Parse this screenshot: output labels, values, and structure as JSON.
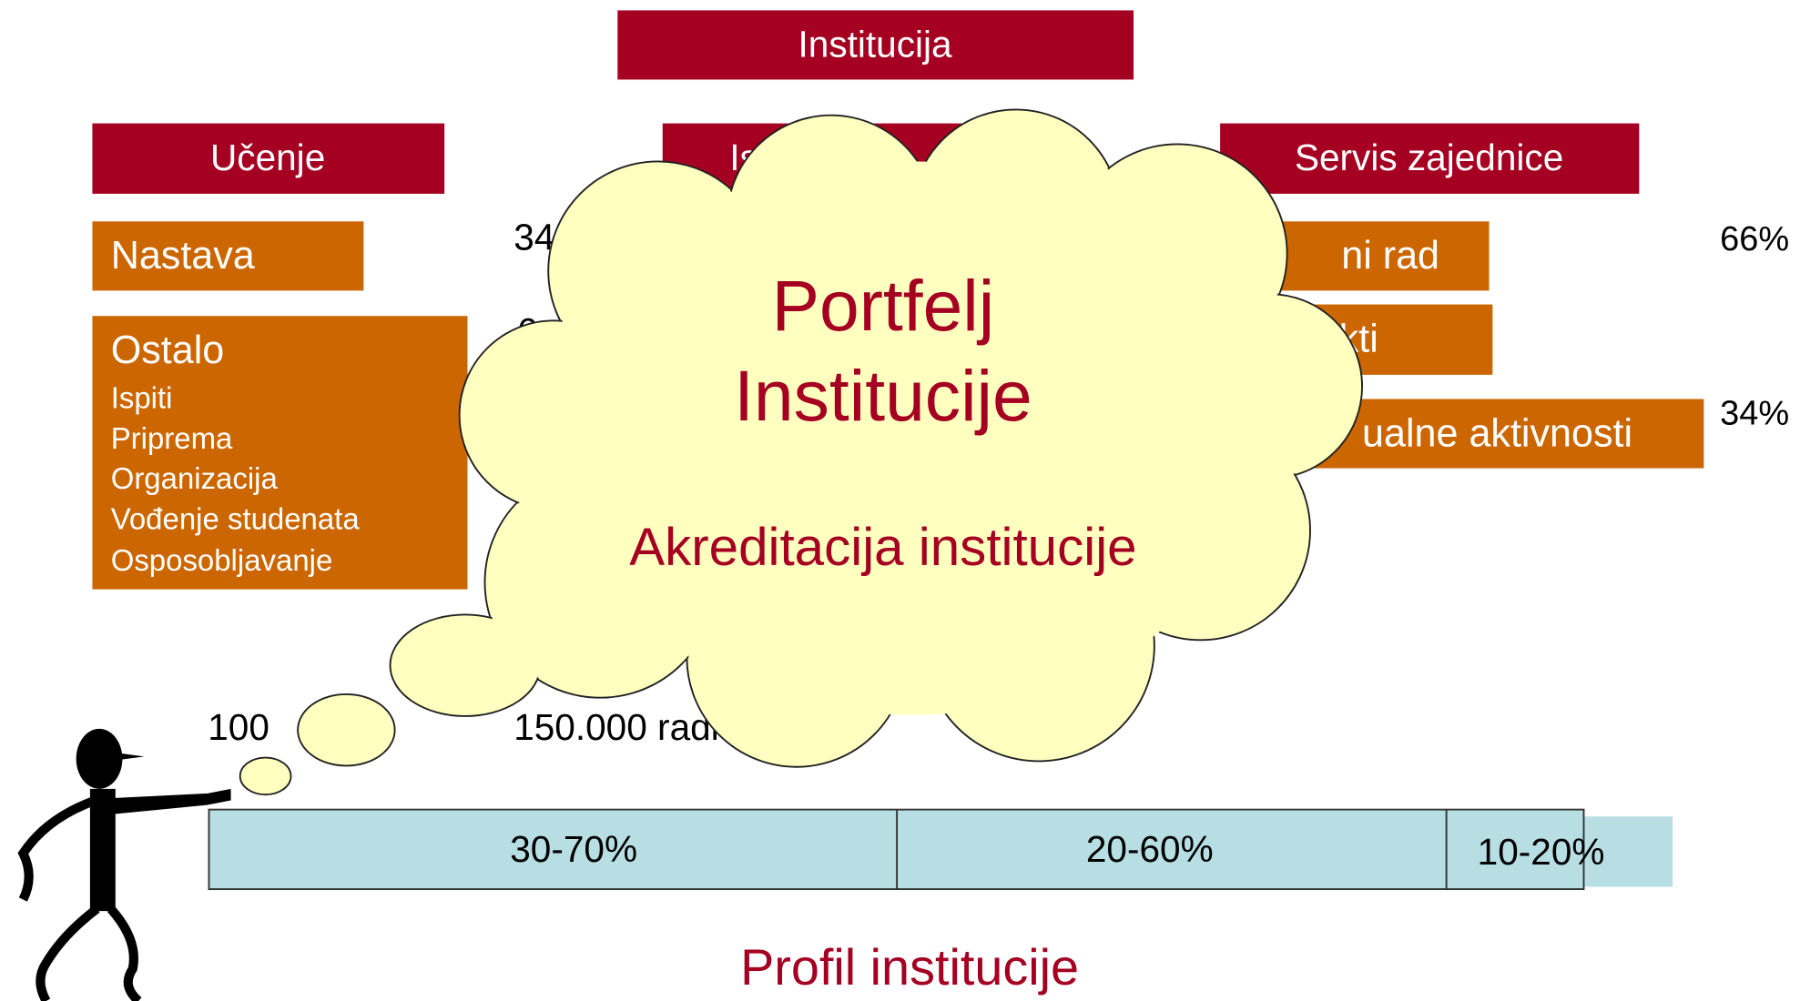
{
  "header": {
    "title": "Institucija"
  },
  "columns": [
    {
      "title": "Učenje"
    },
    {
      "title": "Ist"
    },
    {
      "title": "Servis zajednice"
    }
  ],
  "left": {
    "nastava": "Nastava",
    "nastava_share": "34",
    "ostalo": {
      "title": "Ostalo",
      "items": [
        "Ispiti",
        "Priprema",
        "Organizacija",
        "Vođenje studenata",
        "Osposobljavanje"
      ]
    },
    "ostalo_share": "6"
  },
  "right": {
    "items": [
      "ni rad",
      "kti",
      "ualne aktivnosti"
    ],
    "shares": [
      "66%",
      "34%"
    ]
  },
  "totals": [
    "100",
    "150.000 radnih s"
  ],
  "profile": {
    "segments": [
      "30-70%",
      "20-60%",
      "10-20%"
    ],
    "title": "Profil institucije"
  },
  "cloud": {
    "title_lines": [
      "Portfelj",
      "Institucije"
    ],
    "subtitle": "Akreditacija institucije"
  }
}
